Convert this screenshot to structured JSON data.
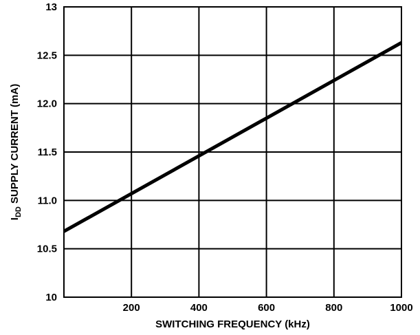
{
  "chart_data": {
    "type": "line",
    "title": "",
    "xlabel": "SWITCHING FREQUENCY (kHz)",
    "ylabel": {
      "main": "I",
      "subscript": "DD",
      "rest": " SUPPLY CURRENT (mA)"
    },
    "xlim": [
      0,
      1000
    ],
    "ylim": [
      10,
      13
    ],
    "x_ticks": [
      200,
      400,
      600,
      800,
      1000
    ],
    "x_tick_labels": [
      "200",
      "400",
      "600",
      "800",
      "1000"
    ],
    "y_ticks": [
      10,
      10.5,
      11,
      11.5,
      12,
      12.5,
      13
    ],
    "y_tick_labels": [
      "10",
      "10.5",
      "11.0",
      "11.5",
      "12.0",
      "12.5",
      "13"
    ],
    "grid": true,
    "series": [
      {
        "x": [
          0,
          1000
        ],
        "y": [
          10.68,
          12.63
        ],
        "color": "#000000"
      }
    ]
  }
}
